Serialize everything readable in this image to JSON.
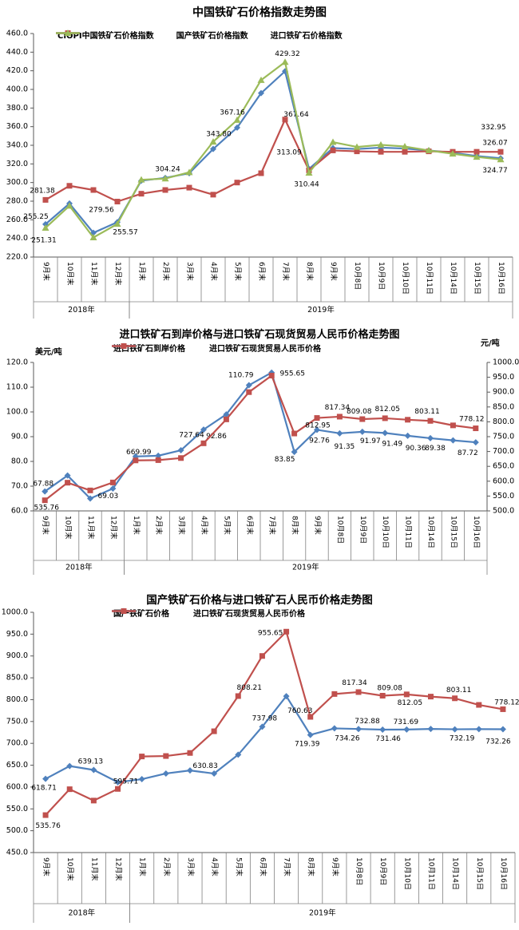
{
  "chart_data": [
    {
      "type": "line",
      "title": "中国铁矿石价格指数走势图",
      "y_axis": {
        "min": 220,
        "max": 460,
        "step": 20
      },
      "categories": [
        "9月末",
        "10月末",
        "11月末",
        "12月末",
        "1月末",
        "2月末",
        "3月末",
        "4月末",
        "5月末",
        "6月末",
        "7月末",
        "8月末",
        "9月末",
        "10月8日",
        "10月9日",
        "10月10日",
        "10月11日",
        "10月14日",
        "10月15日",
        "10月16日"
      ],
      "year_groups": [
        {
          "label": "2018年",
          "count": 4
        },
        {
          "label": "2019年",
          "count": 16
        }
      ],
      "series": [
        {
          "name": "CIOPI中国铁矿石价格指数",
          "color": "#4F81BD",
          "marker": "diamond",
          "axis": "left",
          "values": [
            255.25,
            277.5,
            246,
            257.5,
            302,
            305,
            310,
            336,
            359,
            396,
            419.5,
            314.6,
            337,
            336,
            337.5,
            336.5,
            334.5,
            332,
            328.5,
            326.07
          ],
          "point_labels": [
            {
              "i": 0,
              "text": "255.25",
              "dx": -12,
              "dy": -9
            },
            {
              "i": 19,
              "text": "326.07",
              "dx": -7,
              "dy": -19
            }
          ]
        },
        {
          "name": "国产铁矿石价格指数",
          "color": "#C0504D",
          "marker": "square",
          "axis": "left",
          "values": [
            281.38,
            296.5,
            292,
            279.56,
            288,
            292,
            294.5,
            287,
            300,
            310,
            367.64,
            313.09,
            334.5,
            333.5,
            333,
            333,
            333.5,
            333,
            333,
            332.95
          ],
          "point_labels": [
            {
              "i": 0,
              "text": "281.38",
              "dx": -4,
              "dy": -11
            },
            {
              "i": 3,
              "text": "279.56",
              "dx": -20,
              "dy": 11
            },
            {
              "i": 10,
              "text": "367.64",
              "dx": 14,
              "dy": -6
            },
            {
              "i": 11,
              "text": "313.09",
              "dx": -25,
              "dy": -22
            },
            {
              "i": 19,
              "text": "332.95",
              "dx": -9,
              "dy": -30
            }
          ]
        },
        {
          "name": "进口铁矿石价格指数",
          "color": "#9BBB59",
          "marker": "triangle",
          "axis": "left",
          "values": [
            251.31,
            275,
            241,
            255.57,
            303,
            304.24,
            311,
            343.8,
            367.16,
            410,
            429.32,
            310.44,
            343.4,
            338.2,
            340.5,
            338.7,
            334.5,
            330.9,
            327.5,
            324.77
          ],
          "point_labels": [
            {
              "i": 0,
              "text": "251.31",
              "dx": -2,
              "dy": 16
            },
            {
              "i": 3,
              "text": "255.57",
              "dx": 10,
              "dy": 11
            },
            {
              "i": 5,
              "text": "304.24",
              "dx": 3,
              "dy": -11
            },
            {
              "i": 7,
              "text": "343.80",
              "dx": 7,
              "dy": -9
            },
            {
              "i": 8,
              "text": "367.16",
              "dx": -6,
              "dy": -9
            },
            {
              "i": 10,
              "text": "429.32",
              "dx": 3,
              "dy": -10
            },
            {
              "i": 11,
              "text": "310.44",
              "dx": -3,
              "dy": 15
            },
            {
              "i": 19,
              "text": "324.77",
              "dx": -7,
              "dy": 14
            }
          ]
        }
      ]
    },
    {
      "type": "line",
      "title": "进口铁矿石到岸价格与进口铁矿石现货贸易人民币价格走势图",
      "y_axis": {
        "min": 60,
        "max": 120,
        "step": 10,
        "unit": "美元/吨"
      },
      "y_axis_right": {
        "min": 500,
        "max": 1000,
        "step": 50,
        "unit": "元/吨"
      },
      "categories": [
        "9月末",
        "10月末",
        "11月末",
        "12月末",
        "1月末",
        "2月末",
        "3月末",
        "4月末",
        "5月末",
        "6月末",
        "7月末",
        "8月末",
        "9月末",
        "10月8日",
        "10月9日",
        "10月10日",
        "10月11日",
        "10月14日",
        "10月15日",
        "10月16日"
      ],
      "year_groups": [
        {
          "label": "2018年",
          "count": 4
        },
        {
          "label": "2019年",
          "count": 16
        }
      ],
      "series": [
        {
          "name": "进口铁矿石到岸价格",
          "color": "#4F81BD",
          "marker": "diamond",
          "axis": "left",
          "values": [
            67.88,
            74.3,
            65,
            69.03,
            82,
            82.3,
            84.5,
            92.86,
            99,
            110.79,
            115.9,
            83.85,
            92.76,
            91.35,
            91.97,
            91.49,
            90.36,
            89.38,
            88.5,
            87.72
          ],
          "point_labels": [
            {
              "i": 0,
              "text": "67.88",
              "dx": -2,
              "dy": -9
            },
            {
              "i": 3,
              "text": "69.03",
              "dx": -6,
              "dy": 10
            },
            {
              "i": 7,
              "text": "92.86",
              "dx": 16,
              "dy": 9
            },
            {
              "i": 9,
              "text": "110.79",
              "dx": -10,
              "dy": -12
            },
            {
              "i": 11,
              "text": "83.85",
              "dx": -12,
              "dy": 10
            },
            {
              "i": 12,
              "text": "92.76",
              "dx": 3,
              "dy": 14
            },
            {
              "i": 13,
              "text": "91.35",
              "dx": 6,
              "dy": 17
            },
            {
              "i": 14,
              "text": "91.97",
              "dx": 10,
              "dy": 12
            },
            {
              "i": 15,
              "text": "91.49",
              "dx": 9,
              "dy": 14
            },
            {
              "i": 16,
              "text": "90.36",
              "dx": 10,
              "dy": 16
            },
            {
              "i": 17,
              "text": "89.38",
              "dx": 6,
              "dy": 13
            },
            {
              "i": 19,
              "text": "87.72",
              "dx": -10,
              "dy": 14
            }
          ]
        },
        {
          "name": "进口铁矿石现货贸易人民币价格",
          "color": "#C0504D",
          "marker": "square",
          "axis": "right",
          "values": [
            535.76,
            595,
            569,
            595.71,
            669.99,
            671,
            678,
            727.64,
            808.21,
            900,
            955.65,
            760.63,
            812.95,
            817.34,
            809.08,
            812.05,
            807,
            803.11,
            788,
            778.12
          ],
          "point_labels": [
            {
              "i": 0,
              "text": "535.76",
              "dx": 2,
              "dy": 10
            },
            {
              "i": 4,
              "text": "669.99",
              "dx": 4,
              "dy": -10
            },
            {
              "i": 7,
              "text": "727.64",
              "dx": -15,
              "dy": -10
            },
            {
              "i": 10,
              "text": "955.65",
              "dx": 26,
              "dy": -2
            },
            {
              "i": 12,
              "text": "812.95",
              "dx": 1,
              "dy": 10
            },
            {
              "i": 13,
              "text": "817.34",
              "dx": -3,
              "dy": -11
            },
            {
              "i": 14,
              "text": "809.08",
              "dx": -4,
              "dy": -9
            },
            {
              "i": 15,
              "text": "812.05",
              "dx": 3,
              "dy": -11
            },
            {
              "i": 17,
              "text": "803.11",
              "dx": -4,
              "dy": -11
            },
            {
              "i": 19,
              "text": "778.12",
              "dx": -5,
              "dy": -11
            }
          ]
        }
      ]
    },
    {
      "type": "line",
      "title": "国产铁矿石价格与进口铁矿石人民币价格走势图",
      "y_axis": {
        "min": 450,
        "max": 1000,
        "step": 50
      },
      "categories": [
        "9月末",
        "10月末",
        "11月末",
        "12月末",
        "1月末",
        "2月末",
        "3月末",
        "4月末",
        "5月末",
        "6月末",
        "7月末",
        "8月末",
        "9月末",
        "10月8日",
        "10月9日",
        "10月10日",
        "10月11日",
        "10月14日",
        "10月15日",
        "10月16日"
      ],
      "year_groups": [
        {
          "label": "2018年",
          "count": 4
        },
        {
          "label": "2019年",
          "count": 16
        }
      ],
      "series": [
        {
          "name": "国产铁矿石价格",
          "color": "#4F81BD",
          "marker": "diamond",
          "axis": "left",
          "values": [
            618.71,
            648,
            639.13,
            611,
            618,
            631,
            638,
            630.83,
            674,
            737.98,
            808,
            719.39,
            734.26,
            732.88,
            731.46,
            731.69,
            733,
            732.19,
            732.5,
            732.26
          ],
          "point_labels": [
            {
              "i": 0,
              "text": "618.71",
              "dx": -2,
              "dy": 12
            },
            {
              "i": 2,
              "text": "639.13",
              "dx": -4,
              "dy": -10
            },
            {
              "i": 7,
              "text": "630.83",
              "dx": -11,
              "dy": -9
            },
            {
              "i": 9,
              "text": "737.98",
              "dx": 3,
              "dy": -10
            },
            {
              "i": 11,
              "text": "719.39",
              "dx": -4,
              "dy": 12
            },
            {
              "i": 12,
              "text": "734.26",
              "dx": 16,
              "dy": 13
            },
            {
              "i": 13,
              "text": "732.88",
              "dx": 11,
              "dy": -9
            },
            {
              "i": 14,
              "text": "731.46",
              "dx": 7,
              "dy": 12
            },
            {
              "i": 15,
              "text": "731.69",
              "dx": -1,
              "dy": -9
            },
            {
              "i": 17,
              "text": "732.19",
              "dx": 9,
              "dy": 12
            },
            {
              "i": 19,
              "text": "732.26",
              "dx": -6,
              "dy": 16
            }
          ]
        },
        {
          "name": "进口铁矿石现货贸易人民币价格",
          "color": "#C0504D",
          "marker": "square",
          "axis": "left",
          "values": [
            535.76,
            595,
            569,
            595.71,
            669.99,
            671,
            678,
            727.64,
            808.21,
            900,
            955.65,
            760.63,
            812.95,
            817.34,
            809.08,
            812.05,
            807,
            803.11,
            788,
            778.12
          ],
          "point_labels": [
            {
              "i": 0,
              "text": "535.76",
              "dx": 3,
              "dy": 14
            },
            {
              "i": 3,
              "text": "595.71",
              "dx": 10,
              "dy": -9
            },
            {
              "i": 8,
              "text": "808.21",
              "dx": 14,
              "dy": -10
            },
            {
              "i": 10,
              "text": "955.65",
              "dx": -20,
              "dy": 2
            },
            {
              "i": 11,
              "text": "760.63",
              "dx": -13,
              "dy": -7
            },
            {
              "i": 13,
              "text": "817.34",
              "dx": -5,
              "dy": -11
            },
            {
              "i": 14,
              "text": "809.08",
              "dx": 9,
              "dy": -9
            },
            {
              "i": 15,
              "text": "812.05",
              "dx": 4,
              "dy": 11
            },
            {
              "i": 17,
              "text": "803.11",
              "dx": 5,
              "dy": -10
            },
            {
              "i": 19,
              "text": "778.12",
              "dx": 5,
              "dy": -8
            }
          ]
        }
      ]
    }
  ]
}
